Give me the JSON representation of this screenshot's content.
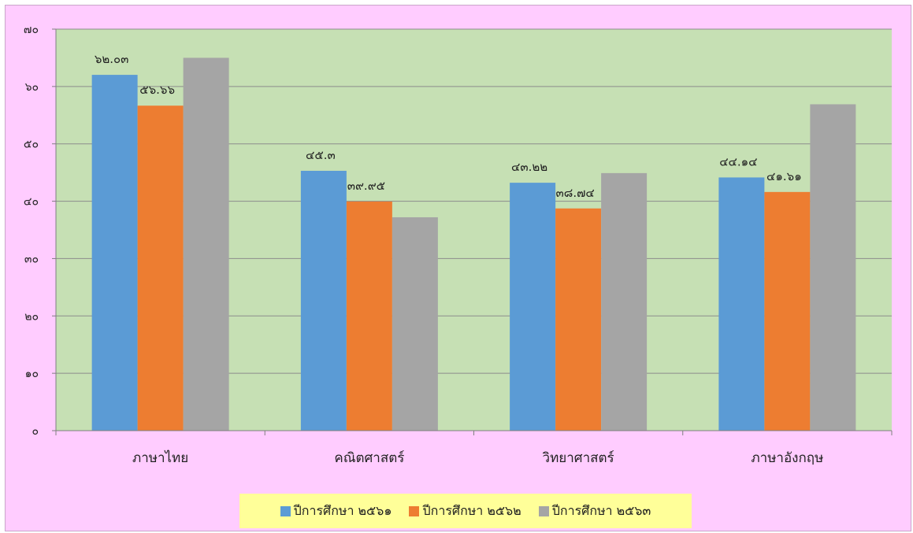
{
  "chart_data": {
    "type": "bar",
    "categories": [
      "ภาษาไทย",
      "คณิตศาสตร์",
      "วิทยาศาสตร์",
      "ภาษาอังกฤษ"
    ],
    "series": [
      {
        "name": "ปีการศึกษา ๒๕๖๑",
        "color": "#5b9bd5",
        "values": [
          62.03,
          45.3,
          43.22,
          44.14
        ],
        "labels": [
          "๖๒.๐๓",
          "๔๕.๓",
          "๔๓.๒๒",
          "๔๔.๑๔"
        ]
      },
      {
        "name": "ปีการศึกษา ๒๕๖๒",
        "color": "#ed7d31",
        "values": [
          56.66,
          39.95,
          38.74,
          41.61
        ],
        "labels": [
          "๕๖.๖๖",
          "๓๙.๙๕",
          "๓๘.๗๔",
          "๔๑.๖๑"
        ]
      },
      {
        "name": "ปีการศึกษา ๒๕๖๓",
        "color": "#a5a5a5",
        "values": [
          65.0,
          37.2,
          44.9,
          56.9
        ],
        "labels": null
      }
    ],
    "ylim": [
      0,
      70
    ],
    "yticks": [
      0,
      10,
      20,
      30,
      40,
      50,
      60,
      70
    ],
    "ytick_labels": [
      "๐",
      "๑๐",
      "๒๐",
      "๓๐",
      "๔๐",
      "๕๐",
      "๖๐",
      "๗๐"
    ],
    "grid": true,
    "legend_position": "bottom",
    "plot_background": "#c6e0b4",
    "chart_background": "#ffccff",
    "legend_background": "#ffff99"
  }
}
